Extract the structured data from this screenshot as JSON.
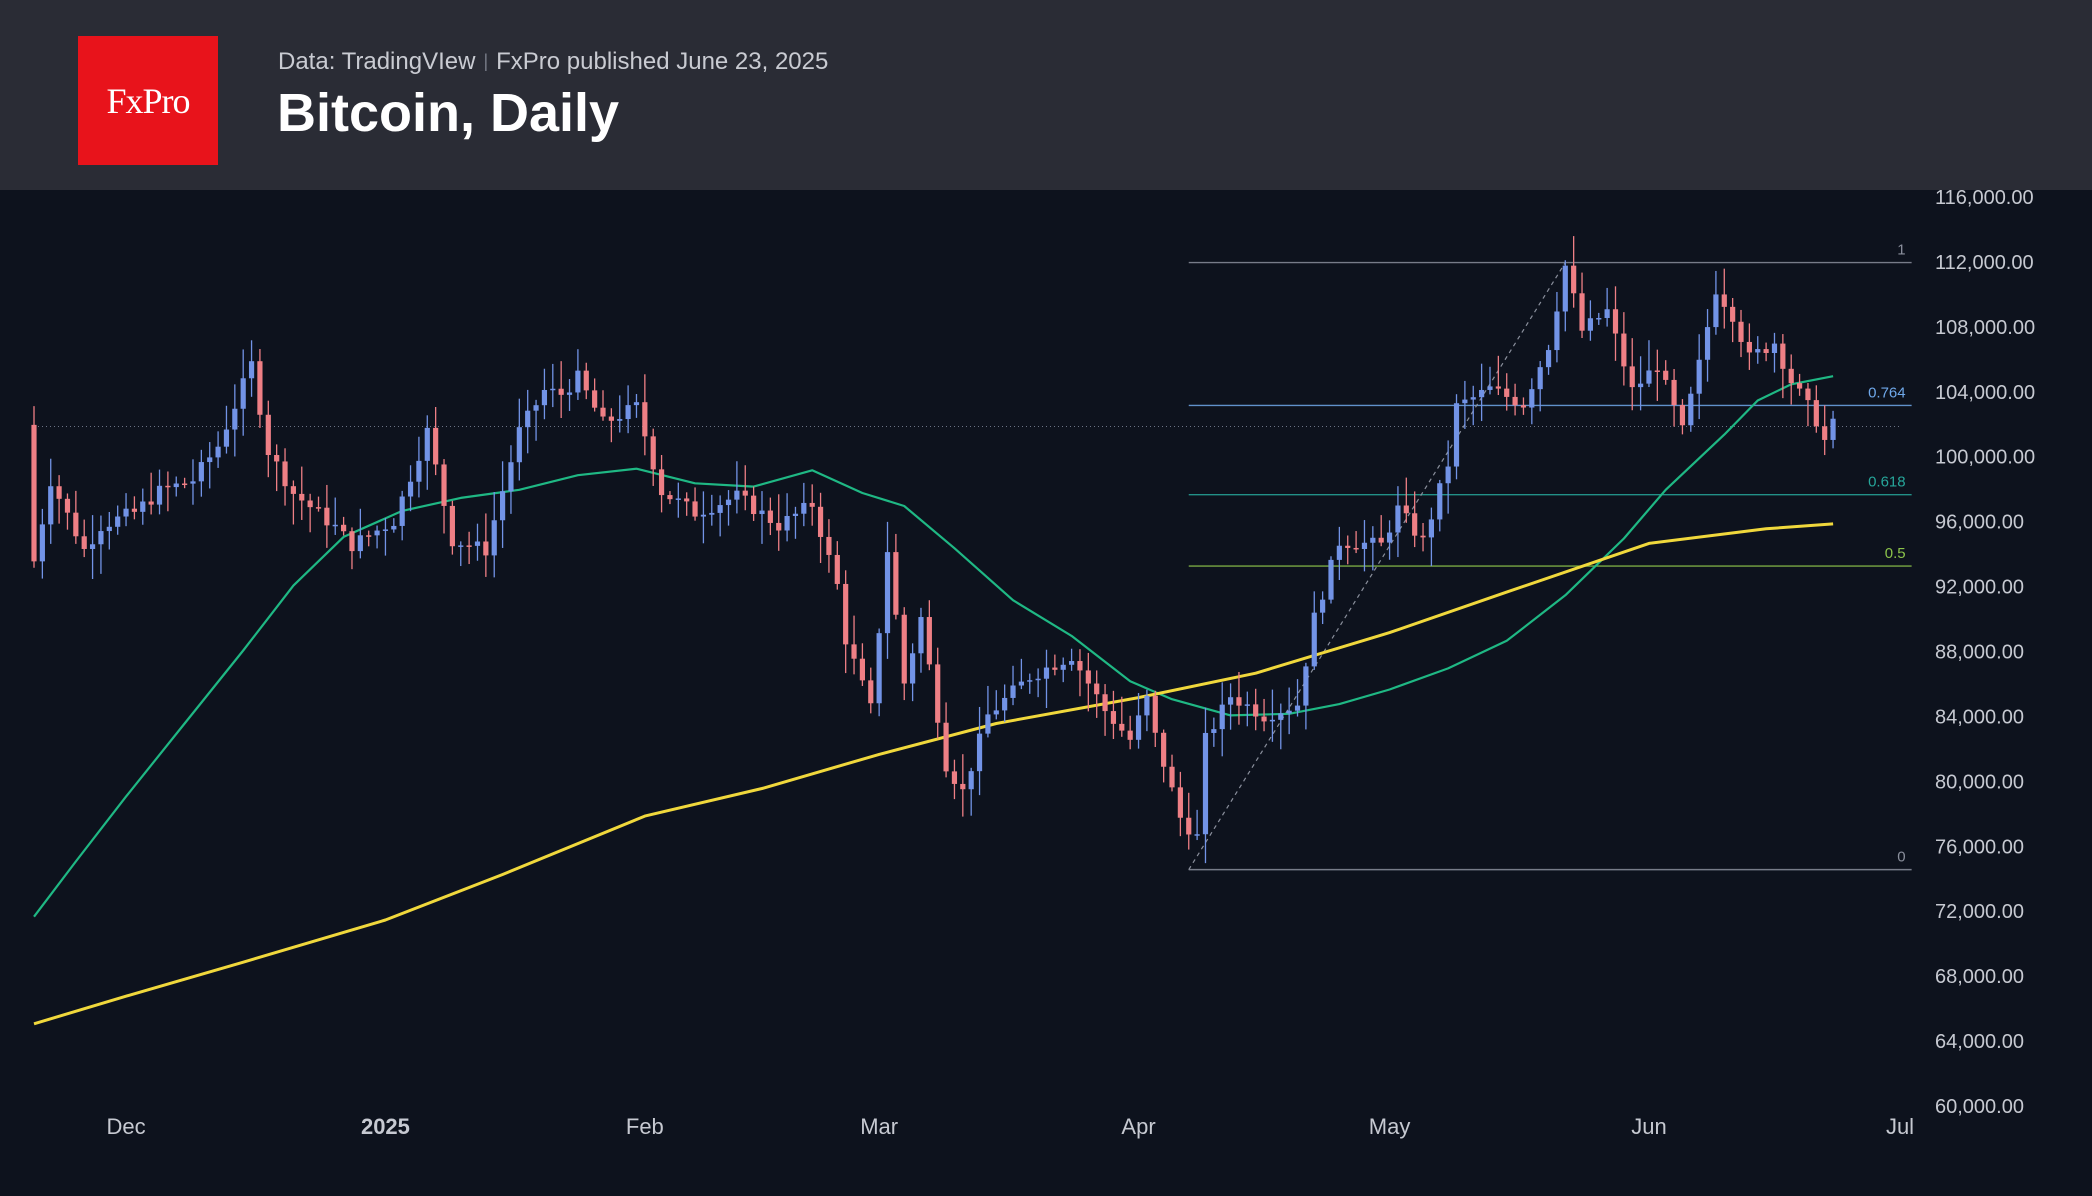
{
  "header": {
    "logo_text": "FxPro",
    "data_source": "Data: TradingVIew",
    "published": "FxPro published June 23, 2025",
    "title": "Bitcoin, Daily"
  },
  "colors": {
    "background": "#0d121d",
    "header_bg": "#2a2c35",
    "logo_bg": "#e8131b",
    "candle_up": "#7293e6",
    "candle_down": "#ee7f85",
    "ma_short": "#1fb884",
    "ma_long": "#f0d83c"
  },
  "chart_data": {
    "type": "candlestick",
    "title": "Bitcoin, Daily",
    "y_axis_ticks": [
      116000,
      112000,
      108000,
      104000,
      100000,
      96000,
      92000,
      88000,
      84000,
      80000,
      76000,
      72000,
      68000,
      64000,
      60000
    ],
    "y_axis_labels": [
      "116,000.00",
      "112,000.00",
      "108,000.00",
      "104,000.00",
      "100,000.00",
      "96,000.00",
      "92,000.00",
      "88,000.00",
      "84,000.00",
      "80,000.00",
      "76,000.00",
      "72,000.00",
      "68,000.00",
      "64,000.00",
      "60,000.00"
    ],
    "ylim": [
      60000,
      116000
    ],
    "xlim": [
      "2024-11-20",
      "2025-07-01"
    ],
    "x_axis_ticks": [
      {
        "date": "2024-12-01",
        "label": "Dec",
        "bold": false
      },
      {
        "date": "2025-01-01",
        "label": "2025",
        "bold": true
      },
      {
        "date": "2025-02-01",
        "label": "Feb",
        "bold": false
      },
      {
        "date": "2025-03-01",
        "label": "Mar",
        "bold": false
      },
      {
        "date": "2025-04-01",
        "label": "Apr",
        "bold": false
      },
      {
        "date": "2025-05-01",
        "label": "May",
        "bold": false
      },
      {
        "date": "2025-06-01",
        "label": "Jun",
        "bold": false
      },
      {
        "date": "2025-07-01",
        "label": "Jul",
        "bold": false
      }
    ],
    "current_price_line": 101800,
    "fibonacci": {
      "start_date": "2025-04-07",
      "end_date": "2025-05-22",
      "label_date": "2025-06-30",
      "low": 74500,
      "high": 111900,
      "levels": [
        {
          "ratio": 1,
          "label": "1",
          "price": 111900,
          "color": "#8a8f9c"
        },
        {
          "ratio": 0.764,
          "label": "0.764",
          "price": 103100,
          "color": "#6fa8ea"
        },
        {
          "ratio": 0.618,
          "label": "0.618",
          "price": 97600,
          "color": "#26a69a"
        },
        {
          "ratio": 0.5,
          "label": "0.5",
          "price": 93200,
          "color": "#8bc34a"
        },
        {
          "ratio": 0,
          "label": "0",
          "price": 74500,
          "color": "#8a8f9c"
        }
      ]
    },
    "moving_averages": [
      {
        "color": "#1fb884",
        "points": [
          [
            "2024-11-20",
            71600
          ],
          [
            "2024-11-25",
            75000
          ],
          [
            "2024-12-01",
            79000
          ],
          [
            "2024-12-08",
            83500
          ],
          [
            "2024-12-15",
            88000
          ],
          [
            "2024-12-21",
            92000
          ],
          [
            "2024-12-27",
            95000
          ],
          [
            "2025-01-03",
            96600
          ],
          [
            "2025-01-10",
            97400
          ],
          [
            "2025-01-17",
            97900
          ],
          [
            "2025-01-24",
            98800
          ],
          [
            "2025-01-31",
            99200
          ],
          [
            "2025-02-07",
            98300
          ],
          [
            "2025-02-14",
            98100
          ],
          [
            "2025-02-21",
            99100
          ],
          [
            "2025-02-27",
            97700
          ],
          [
            "2025-03-04",
            96900
          ],
          [
            "2025-03-10",
            94300
          ],
          [
            "2025-03-17",
            91100
          ],
          [
            "2025-03-24",
            88900
          ],
          [
            "2025-03-31",
            86100
          ],
          [
            "2025-04-05",
            85000
          ],
          [
            "2025-04-12",
            84000
          ],
          [
            "2025-04-19",
            84100
          ],
          [
            "2025-04-25",
            84700
          ],
          [
            "2025-05-01",
            85600
          ],
          [
            "2025-05-08",
            86900
          ],
          [
            "2025-05-15",
            88600
          ],
          [
            "2025-05-22",
            91400
          ],
          [
            "2025-05-29",
            94900
          ],
          [
            "2025-06-03",
            97900
          ],
          [
            "2025-06-10",
            101300
          ],
          [
            "2025-06-14",
            103400
          ],
          [
            "2025-06-18",
            104400
          ],
          [
            "2025-06-23",
            104900
          ]
        ]
      },
      {
        "color": "#f0d83c",
        "points": [
          [
            "2024-11-20",
            65000
          ],
          [
            "2024-12-01",
            66700
          ],
          [
            "2024-12-15",
            68800
          ],
          [
            "2025-01-01",
            71400
          ],
          [
            "2025-01-15",
            74200
          ],
          [
            "2025-02-01",
            77800
          ],
          [
            "2025-02-15",
            79500
          ],
          [
            "2025-03-01",
            81600
          ],
          [
            "2025-03-15",
            83500
          ],
          [
            "2025-04-01",
            85100
          ],
          [
            "2025-04-15",
            86600
          ],
          [
            "2025-05-01",
            89100
          ],
          [
            "2025-05-15",
            91600
          ],
          [
            "2025-06-01",
            94600
          ],
          [
            "2025-06-15",
            95500
          ],
          [
            "2025-06-23",
            95800
          ]
        ]
      }
    ],
    "series_anchors": [
      [
        "2024-11-20",
        93500
      ],
      [
        "2024-11-22",
        98500
      ],
      [
        "2024-11-26",
        94200
      ],
      [
        "2024-11-28",
        95700
      ],
      [
        "2024-12-02",
        96500
      ],
      [
        "2024-12-05",
        97800
      ],
      [
        "2024-12-09",
        98500
      ],
      [
        "2024-12-12",
        100600
      ],
      [
        "2024-12-16",
        105600
      ],
      [
        "2024-12-18",
        100300
      ],
      [
        "2024-12-21",
        97700
      ],
      [
        "2024-12-26",
        95600
      ],
      [
        "2024-12-28",
        94500
      ],
      [
        "2025-01-02",
        96000
      ],
      [
        "2025-01-06",
        101500
      ],
      [
        "2025-01-09",
        94800
      ],
      [
        "2025-01-13",
        94200
      ],
      [
        "2025-01-17",
        101500
      ],
      [
        "2025-01-20",
        104000
      ],
      [
        "2025-01-22",
        103800
      ],
      [
        "2025-01-24",
        104800
      ],
      [
        "2025-01-27",
        102000
      ],
      [
        "2025-01-31",
        103000
      ],
      [
        "2025-02-03",
        97800
      ],
      [
        "2025-02-07",
        96500
      ],
      [
        "2025-02-12",
        97500
      ],
      [
        "2025-02-17",
        95700
      ],
      [
        "2025-02-21",
        97000
      ],
      [
        "2025-02-24",
        92000
      ],
      [
        "2025-02-25",
        88700
      ],
      [
        "2025-02-28",
        84400
      ],
      [
        "2025-03-02",
        94200
      ],
      [
        "2025-03-04",
        86000
      ],
      [
        "2025-03-06",
        90000
      ],
      [
        "2025-03-09",
        81000
      ],
      [
        "2025-03-11",
        79300
      ],
      [
        "2025-03-14",
        84000
      ],
      [
        "2025-03-19",
        86400
      ],
      [
        "2025-03-24",
        87700
      ],
      [
        "2025-03-28",
        84300
      ],
      [
        "2025-03-31",
        82500
      ],
      [
        "2025-04-02",
        85000
      ],
      [
        "2025-04-03",
        82700
      ],
      [
        "2025-04-06",
        77700
      ],
      [
        "2025-04-08",
        76500
      ],
      [
        "2025-04-09",
        82500
      ],
      [
        "2025-04-12",
        85200
      ],
      [
        "2025-04-16",
        84000
      ],
      [
        "2025-04-20",
        84700
      ],
      [
        "2025-04-22",
        90000
      ],
      [
        "2025-04-25",
        94700
      ],
      [
        "2025-04-30",
        94500
      ],
      [
        "2025-05-02",
        96700
      ],
      [
        "2025-05-05",
        94700
      ],
      [
        "2025-05-08",
        99500
      ],
      [
        "2025-05-09",
        103000
      ],
      [
        "2025-05-13",
        104100
      ],
      [
        "2025-05-17",
        103200
      ],
      [
        "2025-05-20",
        106800
      ],
      [
        "2025-05-22",
        111700
      ],
      [
        "2025-05-24",
        107700
      ],
      [
        "2025-05-27",
        108900
      ],
      [
        "2025-05-30",
        104000
      ],
      [
        "2025-06-02",
        105600
      ],
      [
        "2025-06-05",
        101500
      ],
      [
        "2025-06-07",
        105600
      ],
      [
        "2025-06-09",
        110300
      ],
      [
        "2025-06-11",
        108700
      ],
      [
        "2025-06-13",
        106000
      ],
      [
        "2025-06-16",
        107000
      ],
      [
        "2025-06-18",
        104600
      ],
      [
        "2025-06-21",
        102200
      ],
      [
        "2025-06-22",
        100900
      ],
      [
        "2025-06-23",
        101900
      ]
    ]
  }
}
